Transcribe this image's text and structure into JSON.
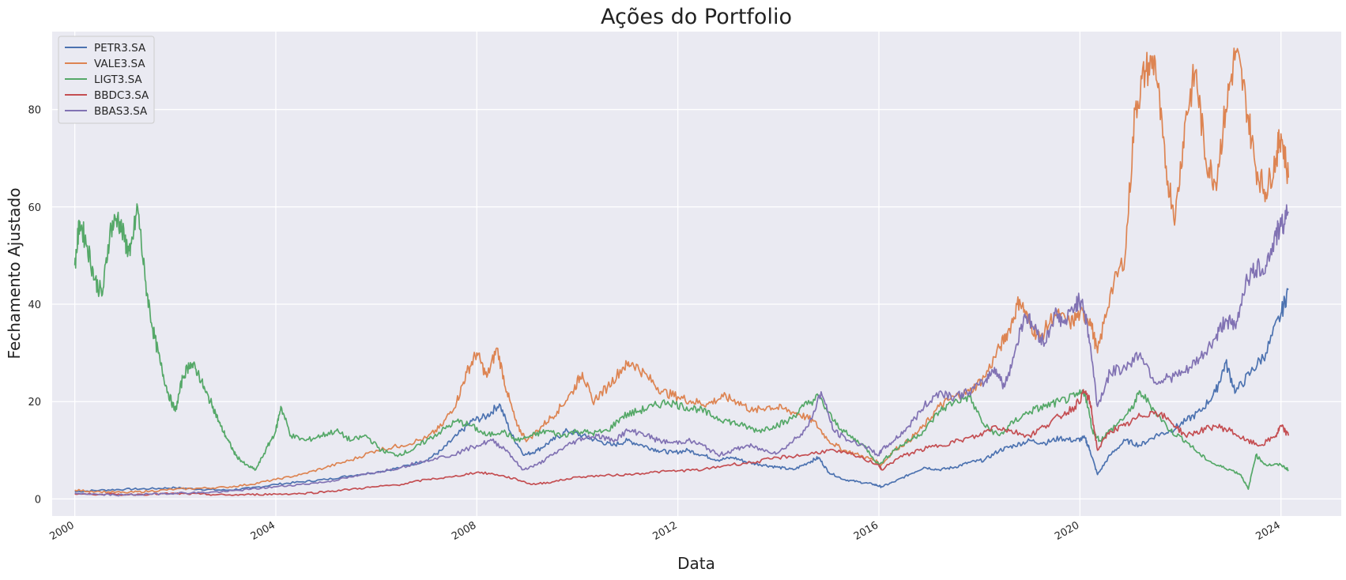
{
  "chart_data": {
    "type": "line",
    "title": "Ações do Portfolio",
    "xlabel": "Data",
    "ylabel": "Fechamento Ajustado",
    "x_ticks": [
      "2000",
      "2004",
      "2008",
      "2012",
      "2016",
      "2020",
      "2024"
    ],
    "y_ticks": [
      "0",
      "20",
      "40",
      "60",
      "80"
    ],
    "xlim": [
      1999.55,
      2025.2
    ],
    "ylim": [
      -3.5,
      96
    ],
    "grid": true,
    "legend_position": "top-left",
    "background": "#eaeaf2",
    "series": [
      {
        "name": "PETR3.SA",
        "color": "#4c72b0",
        "x": [
          2000.0,
          2000.5,
          2001.0,
          2001.5,
          2002.0,
          2002.5,
          2003.0,
          2003.5,
          2004.0,
          2004.5,
          2005.0,
          2005.5,
          2006.0,
          2006.5,
          2007.0,
          2007.3,
          2007.6,
          2007.9,
          2008.2,
          2008.45,
          2008.7,
          2008.95,
          2009.2,
          2009.5,
          2009.8,
          2010.1,
          2010.4,
          2010.7,
          2011.0,
          2011.3,
          2011.6,
          2011.9,
          2012.2,
          2012.5,
          2012.8,
          2013.1,
          2013.4,
          2013.7,
          2014.0,
          2014.3,
          2014.6,
          2014.8,
          2015.0,
          2015.3,
          2015.6,
          2015.9,
          2016.05,
          2016.3,
          2016.6,
          2016.9,
          2017.2,
          2017.5,
          2017.8,
          2018.1,
          2018.4,
          2018.7,
          2019.0,
          2019.3,
          2019.6,
          2019.9,
          2020.1,
          2020.2,
          2020.35,
          2020.6,
          2020.9,
          2021.2,
          2021.5,
          2021.8,
          2022.1,
          2022.4,
          2022.7,
          2022.9,
          2023.1,
          2023.4,
          2023.7,
          2024.0,
          2024.15
        ],
        "y": [
          1.5,
          1.8,
          2.0,
          2.1,
          2.3,
          2.0,
          1.8,
          2.2,
          3.0,
          3.5,
          4.0,
          4.8,
          5.5,
          6.5,
          8.0,
          10.0,
          13.0,
          16.0,
          17.0,
          19.5,
          13.0,
          9.0,
          10.0,
          12.0,
          14.0,
          13.0,
          12.0,
          11.0,
          12.0,
          11.0,
          10.0,
          9.5,
          10.0,
          9.0,
          8.0,
          8.5,
          7.5,
          7.0,
          6.5,
          6.0,
          7.5,
          8.5,
          5.5,
          4.0,
          3.5,
          3.0,
          2.5,
          3.5,
          5.0,
          6.5,
          6.0,
          6.5,
          7.5,
          8.0,
          10.0,
          11.0,
          12.0,
          11.5,
          12.5,
          12.0,
          12.5,
          10.0,
          5.0,
          9.0,
          12.0,
          11.0,
          13.0,
          14.0,
          16.0,
          18.0,
          22.0,
          28.0,
          22.0,
          26.0,
          30.0,
          38.0,
          43.0
        ]
      },
      {
        "name": "VALE3.SA",
        "color": "#dd8452",
        "x": [
          2000.0,
          2000.5,
          2001.0,
          2001.5,
          2002.0,
          2002.5,
          2003.0,
          2003.5,
          2004.0,
          2004.5,
          2005.0,
          2005.5,
          2006.0,
          2006.5,
          2007.0,
          2007.3,
          2007.6,
          2007.8,
          2008.0,
          2008.2,
          2008.4,
          2008.6,
          2008.8,
          2009.0,
          2009.3,
          2009.6,
          2009.9,
          2010.1,
          2010.3,
          2010.6,
          2010.9,
          2011.1,
          2011.4,
          2011.7,
          2012.0,
          2012.3,
          2012.6,
          2012.9,
          2013.2,
          2013.5,
          2013.8,
          2014.1,
          2014.4,
          2014.7,
          2015.0,
          2015.3,
          2015.6,
          2015.9,
          2016.05,
          2016.3,
          2016.6,
          2016.9,
          2017.2,
          2017.5,
          2017.8,
          2018.1,
          2018.4,
          2018.6,
          2018.8,
          2019.0,
          2019.2,
          2019.5,
          2019.8,
          2020.0,
          2020.2,
          2020.35,
          2020.6,
          2020.9,
          2021.1,
          2021.3,
          2021.5,
          2021.7,
          2021.9,
          2022.1,
          2022.3,
          2022.5,
          2022.7,
          2022.9,
          2023.1,
          2023.3,
          2023.5,
          2023.7,
          2023.9,
          2024.0,
          2024.15
        ],
        "y": [
          1.8,
          1.5,
          1.3,
          1.6,
          2.0,
          2.2,
          2.4,
          3.0,
          4.0,
          5.0,
          6.5,
          8.0,
          10.0,
          11.0,
          12.5,
          15.0,
          20.0,
          26.0,
          30.0,
          25.0,
          31.0,
          22.0,
          15.0,
          12.0,
          15.0,
          18.0,
          22.0,
          26.0,
          20.0,
          23.0,
          27.0,
          28.0,
          25.0,
          22.0,
          21.0,
          20.0,
          19.5,
          21.0,
          20.0,
          18.0,
          19.0,
          18.5,
          17.5,
          16.0,
          12.0,
          10.0,
          9.0,
          8.0,
          7.0,
          10.0,
          12.0,
          15.0,
          19.0,
          21.0,
          22.0,
          25.0,
          31.0,
          35.0,
          41.0,
          36.0,
          33.0,
          38.0,
          36.0,
          38.0,
          37.0,
          30.0,
          42.0,
          50.0,
          80.0,
          88.0,
          90.0,
          68.0,
          58.0,
          78.0,
          88.0,
          70.0,
          65.0,
          80.0,
          92.0,
          82.0,
          68.0,
          63.0,
          70.0,
          75.0,
          66.0
        ]
      },
      {
        "name": "LIGT3.SA",
        "color": "#55a868",
        "x": [
          2000.0,
          2000.1,
          2000.25,
          2000.4,
          2000.55,
          2000.7,
          2000.85,
          2001.0,
          2001.1,
          2001.25,
          2001.4,
          2001.55,
          2001.7,
          2001.85,
          2002.0,
          2002.15,
          2002.3,
          2002.45,
          2002.6,
          2002.75,
          2002.9,
          2003.05,
          2003.2,
          2003.4,
          2003.6,
          2003.8,
          2004.0,
          2004.1,
          2004.3,
          2004.6,
          2004.9,
          2005.2,
          2005.5,
          2005.8,
          2006.1,
          2006.4,
          2006.7,
          2007.0,
          2007.3,
          2007.6,
          2007.9,
          2008.2,
          2008.5,
          2008.8,
          2009.1,
          2009.4,
          2009.7,
          2010.0,
          2010.3,
          2010.6,
          2010.9,
          2011.2,
          2011.5,
          2011.8,
          2012.1,
          2012.4,
          2012.7,
          2013.0,
          2013.3,
          2013.6,
          2013.9,
          2014.2,
          2014.5,
          2014.8,
          2015.1,
          2015.4,
          2015.7,
          2016.0,
          2016.3,
          2016.6,
          2016.9,
          2017.2,
          2017.5,
          2017.8,
          2018.1,
          2018.4,
          2018.7,
          2019.0,
          2019.3,
          2019.6,
          2019.9,
          2020.1,
          2020.25,
          2020.4,
          2020.7,
          2021.0,
          2021.2,
          2021.5,
          2021.8,
          2022.1,
          2022.4,
          2022.7,
          2023.0,
          2023.2,
          2023.35,
          2023.5,
          2023.7,
          2024.0,
          2024.15
        ],
        "y": [
          48.0,
          57.0,
          52.0,
          45.0,
          42.0,
          55.0,
          58.0,
          53.0,
          50.0,
          60.0,
          45.0,
          35.0,
          28.0,
          22.0,
          18.0,
          25.0,
          28.0,
          26.0,
          22.0,
          19.0,
          15.0,
          12.0,
          9.0,
          7.0,
          6.0,
          10.0,
          14.0,
          19.0,
          13.0,
          12.0,
          13.0,
          14.0,
          12.0,
          13.0,
          10.0,
          9.0,
          10.0,
          12.0,
          14.0,
          16.0,
          15.0,
          13.0,
          14.0,
          12.0,
          13.0,
          14.0,
          13.0,
          14.0,
          13.5,
          14.0,
          17.0,
          18.0,
          19.0,
          20.0,
          19.0,
          18.5,
          17.0,
          16.0,
          15.0,
          14.0,
          15.0,
          16.0,
          19.0,
          21.0,
          16.0,
          13.0,
          11.0,
          7.0,
          10.0,
          12.0,
          14.0,
          18.0,
          20.0,
          21.0,
          15.0,
          13.0,
          16.0,
          18.0,
          19.0,
          20.0,
          21.0,
          22.0,
          14.0,
          12.0,
          15.0,
          18.0,
          22.0,
          18.0,
          14.0,
          12.0,
          9.0,
          7.0,
          6.0,
          5.0,
          2.0,
          9.0,
          7.0,
          7.0,
          6.0
        ]
      },
      {
        "name": "BBDC3.SA",
        "color": "#c44e52",
        "x": [
          2000.0,
          2000.5,
          2001.0,
          2001.5,
          2002.0,
          2002.5,
          2003.0,
          2003.5,
          2004.0,
          2004.5,
          2005.0,
          2005.5,
          2006.0,
          2006.5,
          2007.0,
          2007.5,
          2008.0,
          2008.4,
          2008.8,
          2009.1,
          2009.5,
          2010.0,
          2010.5,
          2011.0,
          2011.5,
          2012.0,
          2012.5,
          2013.0,
          2013.5,
          2014.0,
          2014.5,
          2015.0,
          2015.5,
          2016.0,
          2016.05,
          2016.4,
          2016.8,
          2017.2,
          2017.6,
          2018.0,
          2018.3,
          2018.6,
          2019.0,
          2019.3,
          2019.6,
          2019.9,
          2020.1,
          2020.2,
          2020.35,
          2020.6,
          2020.9,
          2021.2,
          2021.5,
          2021.8,
          2022.1,
          2022.4,
          2022.7,
          2023.0,
          2023.3,
          2023.6,
          2023.9,
          2024.0,
          2024.15
        ],
        "y": [
          1.0,
          1.0,
          0.9,
          1.0,
          1.1,
          1.0,
          0.8,
          0.9,
          1.0,
          1.1,
          1.5,
          2.0,
          2.5,
          3.0,
          4.0,
          4.5,
          5.5,
          5.0,
          4.0,
          3.0,
          3.5,
          4.5,
          4.8,
          5.0,
          5.5,
          5.8,
          6.0,
          7.0,
          7.5,
          8.5,
          9.0,
          10.0,
          9.0,
          7.0,
          6.0,
          8.5,
          10.0,
          11.0,
          12.0,
          13.0,
          15.0,
          14.0,
          13.0,
          15.0,
          17.0,
          19.0,
          22.0,
          20.0,
          10.0,
          14.0,
          15.0,
          17.0,
          18.0,
          16.0,
          13.0,
          14.0,
          15.0,
          14.0,
          12.0,
          11.0,
          13.0,
          15.0,
          13.0
        ]
      },
      {
        "name": "BBAS3.SA",
        "color": "#8172b3",
        "x": [
          2000.0,
          2000.5,
          2001.0,
          2001.5,
          2002.0,
          2002.5,
          2003.0,
          2003.5,
          2004.0,
          2004.5,
          2005.0,
          2005.5,
          2006.0,
          2006.5,
          2007.0,
          2007.5,
          2008.0,
          2008.3,
          2008.6,
          2008.9,
          2009.2,
          2009.5,
          2009.8,
          2010.1,
          2010.4,
          2010.7,
          2011.0,
          2011.3,
          2011.6,
          2011.9,
          2012.2,
          2012.5,
          2012.8,
          2013.1,
          2013.4,
          2013.7,
          2014.0,
          2014.3,
          2014.6,
          2014.85,
          2015.1,
          2015.4,
          2015.7,
          2016.0,
          2016.05,
          2016.3,
          2016.6,
          2016.9,
          2017.2,
          2017.5,
          2017.8,
          2018.1,
          2018.3,
          2018.5,
          2018.7,
          2018.9,
          2019.1,
          2019.3,
          2019.5,
          2019.7,
          2019.9,
          2020.05,
          2020.2,
          2020.35,
          2020.6,
          2020.9,
          2021.2,
          2021.5,
          2021.8,
          2022.1,
          2022.4,
          2022.7,
          2022.9,
          2023.1,
          2023.3,
          2023.5,
          2023.7,
          2023.9,
          2024.0,
          2024.15
        ],
        "y": [
          1.2,
          0.9,
          0.8,
          1.0,
          1.2,
          1.3,
          1.5,
          2.0,
          2.5,
          3.0,
          3.5,
          4.5,
          5.5,
          6.5,
          8.0,
          9.0,
          11.0,
          12.0,
          10.0,
          6.0,
          7.0,
          9.0,
          11.0,
          12.5,
          13.0,
          12.0,
          14.0,
          13.5,
          12.0,
          11.5,
          12.0,
          11.0,
          9.0,
          10.0,
          11.0,
          10.0,
          9.5,
          12.0,
          15.0,
          22.0,
          14.0,
          12.0,
          11.0,
          9.0,
          10.0,
          12.0,
          15.0,
          19.0,
          22.0,
          21.0,
          22.0,
          24.0,
          27.0,
          23.0,
          30.0,
          38.0,
          35.0,
          32.0,
          38.0,
          36.0,
          40.0,
          41.0,
          32.0,
          19.0,
          26.0,
          27.0,
          30.0,
          24.0,
          25.0,
          26.0,
          29.0,
          33.0,
          37.0,
          35.0,
          45.0,
          47.0,
          48.0,
          54.0,
          56.0,
          59.0
        ]
      }
    ]
  }
}
